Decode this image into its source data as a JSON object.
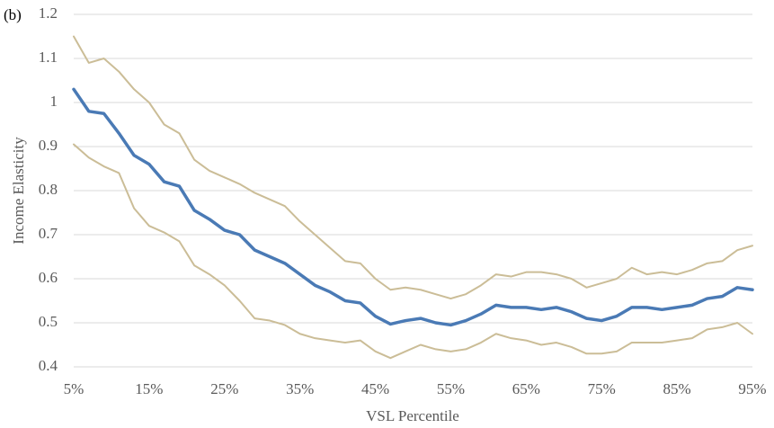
{
  "chart_data": {
    "type": "line",
    "annotation": "(b)",
    "xlabel": "VSL Percentile",
    "ylabel": "Income Elasticity",
    "x": [
      5,
      7,
      9,
      11,
      13,
      15,
      17,
      19,
      21,
      23,
      25,
      27,
      29,
      31,
      33,
      35,
      37,
      39,
      41,
      43,
      45,
      47,
      49,
      51,
      53,
      55,
      57,
      59,
      61,
      63,
      65,
      67,
      69,
      71,
      73,
      75,
      77,
      79,
      81,
      83,
      85,
      87,
      89,
      91,
      93,
      95
    ],
    "series": [
      {
        "color": "#cbbd97",
        "width": 2,
        "values": [
          1.15,
          1.09,
          1.1,
          1.07,
          1.03,
          1.0,
          0.95,
          0.93,
          0.87,
          0.845,
          0.83,
          0.815,
          0.795,
          0.78,
          0.765,
          0.73,
          0.7,
          0.67,
          0.64,
          0.635,
          0.6,
          0.575,
          0.58,
          0.575,
          0.565,
          0.555,
          0.565,
          0.585,
          0.61,
          0.605,
          0.615,
          0.615,
          0.61,
          0.6,
          0.58,
          0.59,
          0.6,
          0.625,
          0.61,
          0.615,
          0.61,
          0.62,
          0.635,
          0.64,
          0.665,
          0.675
        ]
      },
      {
        "color": "#cbbd97",
        "width": 2,
        "values": [
          0.905,
          0.875,
          0.855,
          0.84,
          0.76,
          0.72,
          0.705,
          0.685,
          0.63,
          0.61,
          0.585,
          0.55,
          0.51,
          0.505,
          0.495,
          0.475,
          0.465,
          0.46,
          0.455,
          0.46,
          0.435,
          0.42,
          0.435,
          0.45,
          0.44,
          0.435,
          0.44,
          0.455,
          0.475,
          0.465,
          0.46,
          0.45,
          0.455,
          0.445,
          0.43,
          0.43,
          0.435,
          0.455,
          0.455,
          0.455,
          0.46,
          0.465,
          0.485,
          0.49,
          0.5,
          0.475
        ]
      },
      {
        "color": "#4a7ab5",
        "width": 3.5,
        "values": [
          1.03,
          0.98,
          0.975,
          0.93,
          0.88,
          0.86,
          0.82,
          0.81,
          0.755,
          0.735,
          0.71,
          0.7,
          0.665,
          0.65,
          0.635,
          0.61,
          0.585,
          0.57,
          0.55,
          0.545,
          0.515,
          0.497,
          0.505,
          0.51,
          0.5,
          0.495,
          0.505,
          0.52,
          0.54,
          0.535,
          0.535,
          0.53,
          0.535,
          0.525,
          0.51,
          0.505,
          0.515,
          0.535,
          0.535,
          0.53,
          0.535,
          0.54,
          0.555,
          0.56,
          0.58,
          0.575
        ]
      }
    ],
    "xlim": [
      5,
      95
    ],
    "xticks": [
      {
        "value": 5,
        "label": "5%"
      },
      {
        "value": 15,
        "label": "15%"
      },
      {
        "value": 25,
        "label": "25%"
      },
      {
        "value": 35,
        "label": "35%"
      },
      {
        "value": 45,
        "label": "45%"
      },
      {
        "value": 55,
        "label": "55%"
      },
      {
        "value": 65,
        "label": "65%"
      },
      {
        "value": 75,
        "label": "75%"
      },
      {
        "value": 85,
        "label": "85%"
      },
      {
        "value": 95,
        "label": "95%"
      }
    ],
    "ylim": [
      0.4,
      1.2
    ],
    "yticks": [
      0.4,
      0.5,
      0.6,
      0.7,
      0.8,
      0.9,
      1,
      1.1,
      1.2
    ],
    "grid": true
  }
}
